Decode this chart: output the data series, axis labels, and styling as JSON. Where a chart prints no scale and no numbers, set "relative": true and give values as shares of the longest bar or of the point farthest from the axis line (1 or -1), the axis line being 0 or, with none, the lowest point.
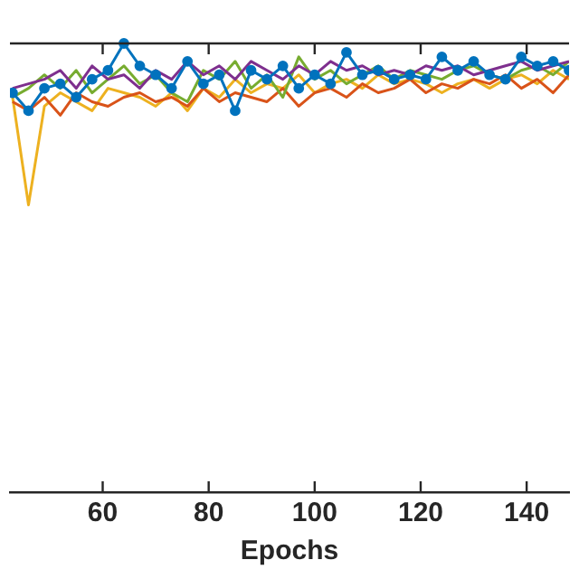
{
  "chart_data": {
    "type": "line",
    "xlabel": "Epochs",
    "relative": true,
    "grid": false,
    "legend": false,
    "marker": "none",
    "line_style": "solid",
    "xlim": [
      42.5,
      148
    ],
    "xticks": [
      60,
      80,
      100,
      120,
      140
    ],
    "x": [
      43,
      46,
      49,
      52,
      55,
      58,
      61,
      64,
      67,
      70,
      73,
      76,
      79,
      82,
      85,
      88,
      91,
      94,
      97,
      100,
      103,
      106,
      109,
      112,
      115,
      118,
      121,
      124,
      127,
      130,
      133,
      136,
      139,
      142,
      145,
      148
    ],
    "series": [
      {
        "color": "#0072bd",
        "marker": "circle",
        "values": [
          0.89,
          0.85,
          0.9,
          0.91,
          0.88,
          0.92,
          0.94,
          1.0,
          0.95,
          0.93,
          0.9,
          0.96,
          0.91,
          0.93,
          0.85,
          0.94,
          0.92,
          0.95,
          0.9,
          0.93,
          0.91,
          0.98,
          0.93,
          0.94,
          0.92,
          0.93,
          0.92,
          0.97,
          0.94,
          0.96,
          0.93,
          0.92,
          0.97,
          0.95,
          0.96,
          0.94
        ]
      },
      {
        "color": "#7e2f8e",
        "values": [
          0.9,
          0.91,
          0.92,
          0.94,
          0.9,
          0.95,
          0.92,
          0.93,
          0.9,
          0.94,
          0.92,
          0.96,
          0.93,
          0.95,
          0.92,
          0.96,
          0.94,
          0.92,
          0.95,
          0.93,
          0.96,
          0.94,
          0.95,
          0.93,
          0.94,
          0.93,
          0.95,
          0.94,
          0.95,
          0.93,
          0.94,
          0.95,
          0.96,
          0.94,
          0.95,
          0.96
        ]
      },
      {
        "color": "#77ac30",
        "values": [
          0.88,
          0.9,
          0.93,
          0.9,
          0.94,
          0.89,
          0.92,
          0.95,
          0.91,
          0.93,
          0.89,
          0.87,
          0.94,
          0.92,
          0.96,
          0.9,
          0.93,
          0.88,
          0.97,
          0.92,
          0.94,
          0.91,
          0.93,
          0.95,
          0.92,
          0.94,
          0.93,
          0.92,
          0.94,
          0.95,
          0.93,
          0.92,
          0.94,
          0.95,
          0.93,
          0.96
        ]
      },
      {
        "color": "#d95319",
        "values": [
          0.87,
          0.85,
          0.88,
          0.84,
          0.89,
          0.87,
          0.86,
          0.88,
          0.89,
          0.87,
          0.88,
          0.86,
          0.9,
          0.87,
          0.89,
          0.88,
          0.87,
          0.9,
          0.86,
          0.89,
          0.9,
          0.88,
          0.91,
          0.89,
          0.9,
          0.92,
          0.89,
          0.91,
          0.9,
          0.92,
          0.91,
          0.93,
          0.9,
          0.92,
          0.89,
          0.93
        ]
      },
      {
        "color": "#edb120",
        "values": [
          0.88,
          0.64,
          0.86,
          0.89,
          0.87,
          0.85,
          0.9,
          0.89,
          0.88,
          0.86,
          0.89,
          0.85,
          0.9,
          0.88,
          0.92,
          0.89,
          0.91,
          0.9,
          0.93,
          0.89,
          0.91,
          0.92,
          0.9,
          0.93,
          0.91,
          0.92,
          0.91,
          0.89,
          0.91,
          0.92,
          0.9,
          0.92,
          0.93,
          0.91,
          0.94,
          0.92
        ]
      }
    ]
  }
}
